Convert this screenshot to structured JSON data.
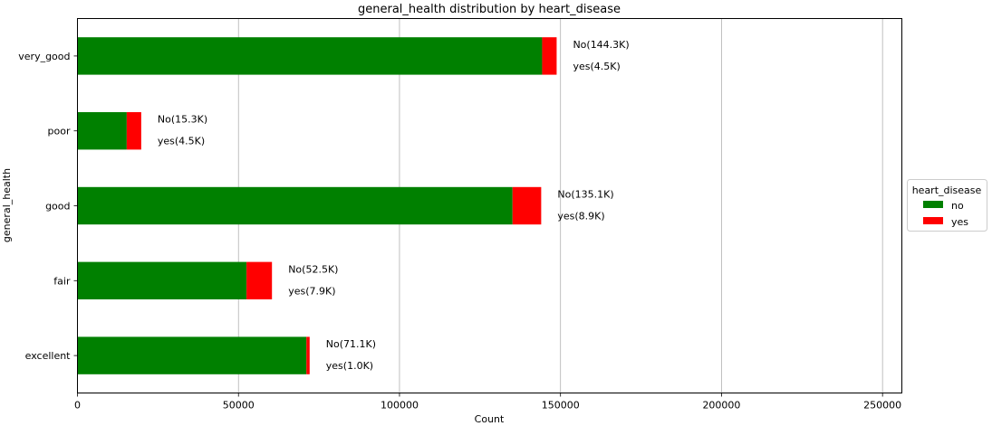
{
  "chart_data": {
    "type": "bar",
    "orientation": "horizontal",
    "stacked": true,
    "title": "general_health distribution by heart_disease",
    "xlabel": "Count",
    "ylabel": "general_health",
    "xlim": [
      0,
      256000
    ],
    "xticks": [
      0,
      50000,
      100000,
      150000,
      200000,
      250000
    ],
    "grid": "x",
    "categories": [
      "excellent",
      "fair",
      "good",
      "poor",
      "very_good"
    ],
    "series": [
      {
        "name": "no",
        "color": "#008000",
        "values": [
          71100,
          52500,
          135100,
          15300,
          144300
        ]
      },
      {
        "name": "yes",
        "color": "#ff0000",
        "values": [
          1000,
          7900,
          8900,
          4500,
          4500
        ]
      }
    ],
    "annotations": [
      {
        "category": "excellent",
        "no_label": "No(71.1K)",
        "yes_label": "yes(1.0K)"
      },
      {
        "category": "fair",
        "no_label": "No(52.5K)",
        "yes_label": "yes(7.9K)"
      },
      {
        "category": "good",
        "no_label": "No(135.1K)",
        "yes_label": "yes(8.9K)"
      },
      {
        "category": "poor",
        "no_label": "No(15.3K)",
        "yes_label": "yes(4.5K)"
      },
      {
        "category": "very_good",
        "no_label": "No(144.3K)",
        "yes_label": "yes(4.5K)"
      }
    ],
    "legend": {
      "title": "heart_disease",
      "placement": "outside-right",
      "entries": [
        "no",
        "yes"
      ]
    }
  }
}
